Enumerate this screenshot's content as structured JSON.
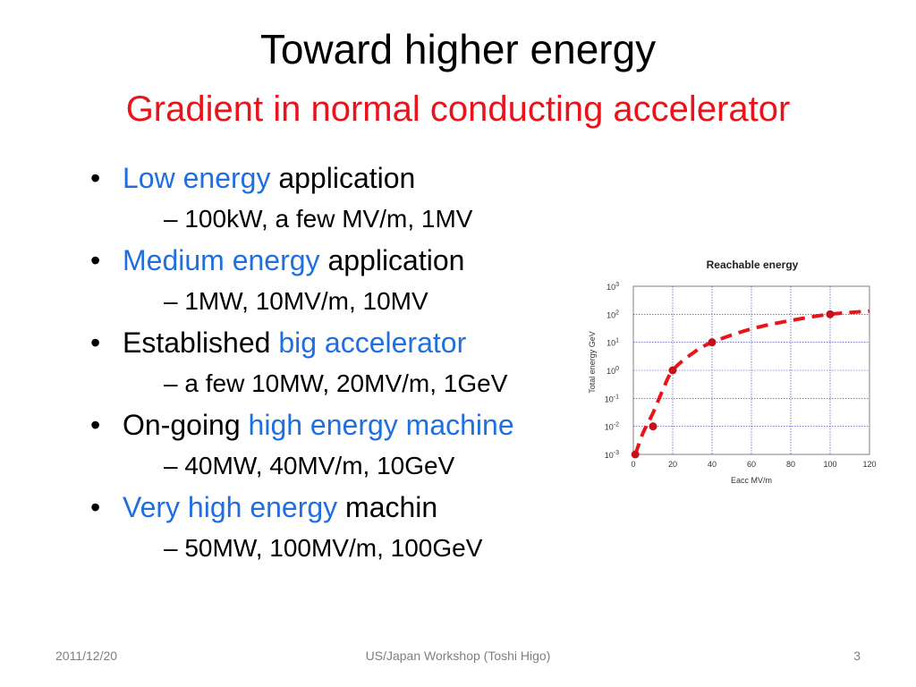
{
  "slide": {
    "title": "Toward higher energy",
    "subtitle": "Gradient in normal conducting accelerator",
    "bullets": [
      {
        "highlight": "Low energy",
        "text": " application",
        "sub": "100kW, a few MV/m, 1MV"
      },
      {
        "highlight": "Medium energy",
        "text": " application",
        "sub": "1MW,  10MV/m, 10MV"
      },
      {
        "prefix": "Established ",
        "highlight": "big accelerator",
        "sub": "a few 10MW, 20MV/m, 1GeV"
      },
      {
        "prefix": "On-going ",
        "highlight": "high energy machine",
        "sub": "40MW, 40MV/m, 10GeV"
      },
      {
        "highlight": "Very high energy",
        "text": " machin",
        "sub": "50MW, 100MV/m, 100GeV"
      }
    ],
    "dash": "–"
  },
  "chart_data": {
    "type": "scatter",
    "title": "Reachable energy",
    "xlabel": "Eacc  MV/m",
    "ylabel": "Total energy GeV",
    "xlim": [
      0,
      120
    ],
    "ylim_log10": [
      -3,
      3
    ],
    "y_scale": "log",
    "x_ticks": [
      "0",
      "20",
      "40",
      "60",
      "80",
      "100",
      "120"
    ],
    "y_ticks": [
      {
        "base": "10",
        "exp": "3"
      },
      {
        "base": "10",
        "exp": "2"
      },
      {
        "base": "10",
        "exp": "1"
      },
      {
        "base": "10",
        "exp": "0"
      },
      {
        "base": "10",
        "exp": "-1"
      },
      {
        "base": "10",
        "exp": "-2"
      },
      {
        "base": "10",
        "exp": "-3"
      }
    ],
    "grid": true,
    "points": [
      {
        "x": 1,
        "y": 0.001
      },
      {
        "x": 10,
        "y": 0.01
      },
      {
        "x": 20,
        "y": 1
      },
      {
        "x": 40,
        "y": 10
      },
      {
        "x": 100,
        "y": 100
      }
    ],
    "trend_curve": [
      {
        "x": 1,
        "y": 0.001
      },
      {
        "x": 5,
        "y": 0.006
      },
      {
        "x": 10,
        "y": 0.03
      },
      {
        "x": 15,
        "y": 0.2
      },
      {
        "x": 20,
        "y": 1
      },
      {
        "x": 30,
        "y": 4
      },
      {
        "x": 40,
        "y": 10
      },
      {
        "x": 60,
        "y": 30
      },
      {
        "x": 80,
        "y": 60
      },
      {
        "x": 100,
        "y": 100
      },
      {
        "x": 120,
        "y": 130
      }
    ],
    "colors": {
      "points": "#c8101a",
      "curve": "#e8141b",
      "grid": "#2a2ab0",
      "axis": "#808080"
    }
  },
  "footer": {
    "date": "2011/12/20",
    "center": "US/Japan Workshop (Toshi Higo)",
    "page": "3"
  }
}
